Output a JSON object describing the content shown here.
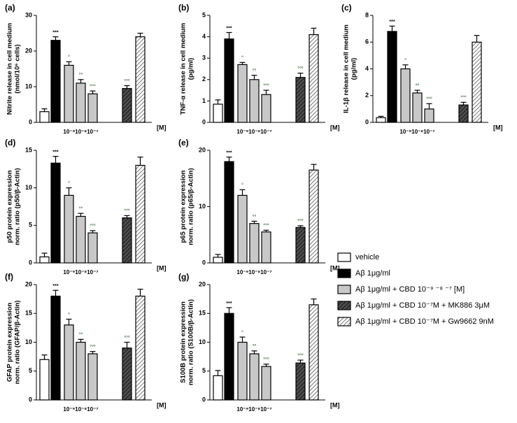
{
  "chart_data": [
    {
      "type": "bar",
      "label": "(a)",
      "ylabel": [
        "Nitrite release in cell medium",
        "(nmol/10⁶ cells)"
      ],
      "ylim": [
        0,
        30
      ],
      "yticks": [
        0,
        10,
        20,
        30
      ],
      "values": [
        3,
        23,
        16,
        11,
        8,
        9.5,
        24
      ],
      "errors": [
        0.8,
        1,
        1,
        1,
        0.8,
        0.8,
        1
      ],
      "value_labels": [
        null,
        "***",
        "°",
        "°°",
        "°°°",
        "°°°",
        null
      ],
      "xlabel": "10⁻⁹10⁻⁸10⁻⁷",
      "unit": "[M]"
    },
    {
      "type": "bar",
      "label": "(b)",
      "ylabel": [
        "TNF-α release in cell medium",
        "(pg/ml)"
      ],
      "ylim": [
        0,
        5
      ],
      "yticks": [
        0,
        1,
        2,
        3,
        4,
        5
      ],
      "values": [
        0.85,
        3.9,
        2.7,
        2.0,
        1.3,
        2.1,
        4.1
      ],
      "errors": [
        0.2,
        0.3,
        0.1,
        0.2,
        0.2,
        0.2,
        0.3
      ],
      "value_labels": [
        null,
        "***",
        "°",
        "°°",
        "°°°",
        "°°°",
        null
      ],
      "xlabel": "10⁻⁹10⁻⁸10⁻⁷",
      "unit": "[M]"
    },
    {
      "type": "bar",
      "label": "(c)",
      "ylabel": [
        "IL-1β release in cell medium",
        "(pg/ml)"
      ],
      "ylim": [
        0,
        8
      ],
      "yticks": [
        0,
        2,
        4,
        6,
        8
      ],
      "values": [
        0.35,
        6.8,
        4.0,
        2.2,
        1.0,
        1.3,
        6.0
      ],
      "errors": [
        0.1,
        0.4,
        0.3,
        0.2,
        0.4,
        0.2,
        0.5
      ],
      "value_labels": [
        null,
        "***",
        "°",
        "°°",
        "°°°",
        "°°°",
        null
      ],
      "xlabel": "10⁻⁹10⁻⁸10⁻⁷",
      "unit": "[M]"
    },
    {
      "type": "bar",
      "label": "(d)",
      "ylabel": [
        "p50 protein expression",
        "norm. ratio (p50/β-Actin)"
      ],
      "ylim": [
        0,
        15
      ],
      "yticks": [
        0,
        5,
        10,
        15
      ],
      "values": [
        0.8,
        13.3,
        9.0,
        6.2,
        4.0,
        6.0,
        13.0
      ],
      "errors": [
        0.5,
        0.9,
        1.0,
        0.4,
        0.3,
        0.3,
        1.1
      ],
      "value_labels": [
        null,
        "***",
        "°",
        "°°",
        "°°°",
        "°°°",
        null
      ],
      "xlabel": "10⁻⁹10⁻⁸10⁻⁷",
      "unit": "[M]"
    },
    {
      "type": "bar",
      "label": "(e)",
      "ylabel": [
        "p65 protein expression",
        "norm. ratio (p65/β-Actin)"
      ],
      "ylim": [
        0,
        20
      ],
      "yticks": [
        0,
        10,
        20
      ],
      "values": [
        1.0,
        18,
        12,
        7,
        5.5,
        6.3,
        16.5
      ],
      "errors": [
        0.5,
        0.8,
        1.0,
        0.4,
        0.3,
        0.3,
        1.0
      ],
      "value_labels": [
        null,
        "***",
        "°",
        "°°",
        "°°°",
        "°°°",
        null
      ],
      "xlabel": "10⁻⁹10⁻⁸10⁻⁷",
      "unit": "[M]"
    },
    {
      "type": "bar",
      "label": "(f)",
      "ylabel": [
        "GFAP protein expression",
        "norm. ratio (GFAP/β-Actin)"
      ],
      "ylim": [
        0,
        20
      ],
      "yticks": [
        0,
        5,
        10,
        15,
        20
      ],
      "values": [
        7,
        18,
        13,
        10,
        8,
        9,
        18
      ],
      "errors": [
        0.8,
        1,
        1,
        0.5,
        0.4,
        1,
        1.2
      ],
      "value_labels": [
        null,
        "***",
        "°",
        "°°",
        "°°°",
        "°°°",
        null
      ],
      "xlabel": "10⁻⁹10⁻⁸10⁻⁷",
      "unit": "[M]"
    },
    {
      "type": "bar",
      "label": "(g)",
      "ylabel": [
        "S100B protein expression",
        "norm. ratio (S100B/β-Actin)"
      ],
      "ylim": [
        0,
        20
      ],
      "yticks": [
        0,
        5,
        10,
        15,
        20
      ],
      "values": [
        4.2,
        15,
        10,
        8,
        5.8,
        6.4,
        16.5
      ],
      "errors": [
        0.9,
        1,
        0.9,
        0.5,
        0.4,
        0.5,
        1
      ],
      "value_labels": [
        null,
        "***",
        "°",
        "°°",
        "°°°",
        "°°°",
        null
      ],
      "xlabel": "10⁻⁹10⁻⁸10⁻⁷",
      "unit": "[M]"
    }
  ],
  "bar_fills": [
    "white",
    "black",
    "lightgray",
    "lightgray",
    "lightgray",
    "darkhatch",
    "lighthatch"
  ],
  "legend": [
    {
      "name": "vehicle",
      "fill": "white"
    },
    {
      "name": "Aβ 1μg/ml",
      "fill": "black"
    },
    {
      "name": "Aβ 1μg/ml + CBD 10⁻⁹ ⁻⁸ ⁻⁷ [M]",
      "fill": "lightgray"
    },
    {
      "name": "Aβ 1μg/ml + CBD 10⁻⁷M + MK886  3μM",
      "fill": "darkhatch"
    },
    {
      "name": "Aβ 1μg/ml + CBD 10⁻⁷M + Gw9662 9nM",
      "fill": "lighthatch"
    }
  ]
}
